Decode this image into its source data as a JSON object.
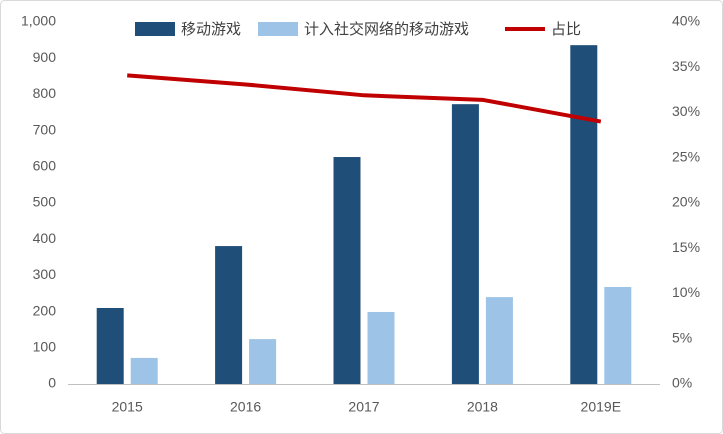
{
  "chart_data": {
    "type": "bar-line",
    "categories": [
      "2015",
      "2016",
      "2017",
      "2018",
      "2019E"
    ],
    "series": [
      {
        "name": "移动游戏",
        "type": "bar",
        "color": "#1f4e79",
        "values": [
          210,
          381,
          627,
          773,
          936
        ]
      },
      {
        "name": "计入社交网络的移动游戏",
        "type": "bar",
        "color": "#9dc3e6",
        "values": [
          72,
          124,
          199,
          240,
          268
        ]
      },
      {
        "name": "占比",
        "type": "line",
        "axis": "y2",
        "color": "#c00000",
        "values": [
          34.1,
          33.1,
          31.9,
          31.4,
          29.0
        ]
      }
    ],
    "ylim": [
      0,
      1000
    ],
    "yticks": [
      0,
      100,
      200,
      300,
      400,
      500,
      600,
      700,
      800,
      900,
      {
        "value": 1000,
        "label": "1,000"
      }
    ],
    "y2lim": [
      0,
      40
    ],
    "y2ticks": [
      {
        "value": 0,
        "label": "0%"
      },
      {
        "value": 5,
        "label": "5%"
      },
      {
        "value": 10,
        "label": "10%"
      },
      {
        "value": 15,
        "label": "15%"
      },
      {
        "value": 20,
        "label": "20%"
      },
      {
        "value": 25,
        "label": "25%"
      },
      {
        "value": 30,
        "label": "30%"
      },
      {
        "value": 35,
        "label": "35%"
      },
      {
        "value": 40,
        "label": "40%"
      }
    ],
    "grid": false,
    "legend": "top"
  }
}
